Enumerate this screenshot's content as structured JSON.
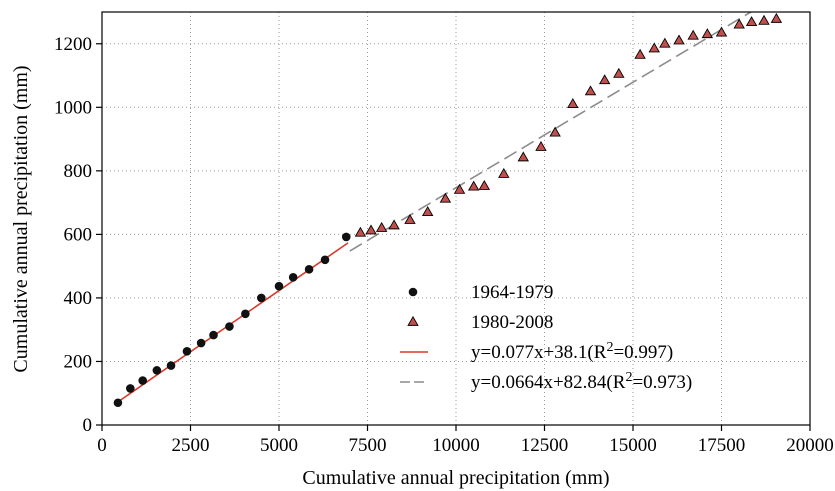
{
  "chart_data": {
    "type": "scatter",
    "title": "",
    "xlabel": "Cumulative annual precipitation (mm)",
    "ylabel": "Cumulative annual precipitation (mm)",
    "xlim": [
      0,
      20000
    ],
    "ylim": [
      0,
      1300
    ],
    "xticks": [
      0,
      2500,
      5000,
      7500,
      10000,
      12500,
      15000,
      17500,
      20000
    ],
    "yticks": [
      0,
      200,
      400,
      600,
      800,
      1000,
      1200
    ],
    "grid": "dotted",
    "legend_position": "lower-right",
    "series": [
      {
        "name": "1964-1979",
        "marker": "circle",
        "color": "#111111",
        "points": [
          [
            450,
            70
          ],
          [
            800,
            115
          ],
          [
            1150,
            140
          ],
          [
            1550,
            172
          ],
          [
            1950,
            187
          ],
          [
            2400,
            232
          ],
          [
            2800,
            258
          ],
          [
            3150,
            283
          ],
          [
            3600,
            310
          ],
          [
            4050,
            350
          ],
          [
            4500,
            400
          ],
          [
            5000,
            437
          ],
          [
            5400,
            465
          ],
          [
            5850,
            490
          ],
          [
            6300,
            520
          ],
          [
            6900,
            592
          ]
        ]
      },
      {
        "name": "1980-2008",
        "marker": "triangle",
        "color": "#c0504d",
        "stroke": "#000000",
        "points": [
          [
            7300,
            605
          ],
          [
            7600,
            612
          ],
          [
            7900,
            620
          ],
          [
            8250,
            628
          ],
          [
            8700,
            645
          ],
          [
            9200,
            670
          ],
          [
            9700,
            712
          ],
          [
            10100,
            740
          ],
          [
            10500,
            750
          ],
          [
            10800,
            752
          ],
          [
            11350,
            790
          ],
          [
            11900,
            842
          ],
          [
            12400,
            875
          ],
          [
            12800,
            920
          ],
          [
            13300,
            1010
          ],
          [
            13800,
            1050
          ],
          [
            14200,
            1085
          ],
          [
            14600,
            1105
          ],
          [
            15200,
            1165
          ],
          [
            15600,
            1185
          ],
          [
            15900,
            1200
          ],
          [
            16300,
            1210
          ],
          [
            16700,
            1225
          ],
          [
            17100,
            1230
          ],
          [
            17500,
            1235
          ],
          [
            18000,
            1260
          ],
          [
            18350,
            1268
          ],
          [
            18700,
            1272
          ],
          [
            19050,
            1278
          ]
        ]
      }
    ],
    "fit_lines": [
      {
        "name": "y=0.077x+38.1(R2=0.997)",
        "label_main": "y=0.077x+38.1(R",
        "label_sup": "2",
        "label_tail": "=0.997)",
        "slope": 0.077,
        "intercept": 38.1,
        "x_range": [
          450,
          6950
        ],
        "color": "#d93a2b",
        "style": "solid"
      },
      {
        "name": "y=0.0664x+82.84(R2=0.973)",
        "label_main": "y=0.0664x+82.84(R",
        "label_sup": "2",
        "label_tail": "=0.973)",
        "slope": 0.0664,
        "intercept": 82.84,
        "x_range": [
          7000,
          18500
        ],
        "color": "#8c8c8c",
        "style": "dashed"
      }
    ]
  }
}
